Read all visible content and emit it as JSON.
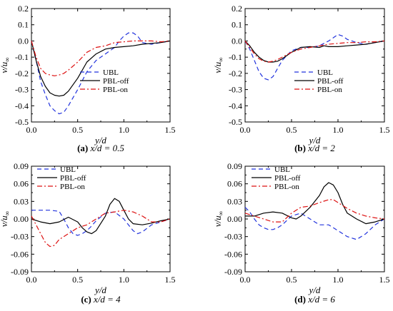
{
  "series_style": {
    "UBL": {
      "color": "#2233dd",
      "dash": "6,4"
    },
    "PBL-off": {
      "color": "#000000",
      "dash": ""
    },
    "PBL-on": {
      "color": "#dd1111",
      "dash": "7,3,2,3"
    }
  },
  "chart_data": [
    {
      "type": "line",
      "caption_letter": "(a)",
      "caption_value": "x/d = 0.5",
      "xlabel": "y/d",
      "ylabel_main": "v/u",
      "ylabel_sub": "∞",
      "xlim": [
        0,
        1.5
      ],
      "ylim": [
        -0.5,
        0.2
      ],
      "xticks": [
        "0.0",
        "0.5",
        "1.0",
        "1.5"
      ],
      "yticks": [
        "0.2",
        "0.1",
        "0.0",
        "-0.1",
        "-0.2",
        "-0.3",
        "-0.4",
        "-0.5"
      ],
      "legend": [
        "UBL",
        "PBL-off",
        "PBL-on"
      ],
      "series": [
        {
          "name": "UBL",
          "x": [
            0,
            0.05,
            0.1,
            0.15,
            0.2,
            0.25,
            0.3,
            0.35,
            0.4,
            0.5,
            0.6,
            0.7,
            0.8,
            0.9,
            0.95,
            1.0,
            1.05,
            1.1,
            1.15,
            1.2,
            1.3,
            1.4,
            1.5
          ],
          "y": [
            0,
            -0.12,
            -0.25,
            -0.33,
            -0.4,
            -0.43,
            -0.45,
            -0.44,
            -0.4,
            -0.3,
            -0.19,
            -0.12,
            -0.08,
            -0.04,
            0,
            0.03,
            0.05,
            0.05,
            0.03,
            -0.01,
            -0.02,
            -0.01,
            0
          ]
        },
        {
          "name": "PBL-off",
          "x": [
            0,
            0.05,
            0.1,
            0.15,
            0.2,
            0.25,
            0.3,
            0.35,
            0.4,
            0.5,
            0.6,
            0.7,
            0.8,
            0.9,
            1.0,
            1.1,
            1.2,
            1.3,
            1.4,
            1.5
          ],
          "y": [
            0,
            -0.12,
            -0.22,
            -0.28,
            -0.32,
            -0.335,
            -0.34,
            -0.335,
            -0.31,
            -0.23,
            -0.13,
            -0.08,
            -0.05,
            -0.04,
            -0.035,
            -0.03,
            -0.02,
            -0.015,
            -0.01,
            0
          ]
        },
        {
          "name": "PBL-on",
          "x": [
            0,
            0.05,
            0.1,
            0.15,
            0.2,
            0.25,
            0.3,
            0.35,
            0.4,
            0.5,
            0.6,
            0.7,
            0.8,
            0.9,
            1.0,
            1.1,
            1.2,
            1.3,
            1.4,
            1.5
          ],
          "y": [
            0,
            -0.1,
            -0.17,
            -0.2,
            -0.21,
            -0.215,
            -0.21,
            -0.2,
            -0.18,
            -0.13,
            -0.07,
            -0.04,
            -0.03,
            -0.01,
            -0.005,
            0,
            0,
            0,
            -0.005,
            0
          ]
        }
      ]
    },
    {
      "type": "line",
      "caption_letter": "(b)",
      "caption_value": "x/d = 2",
      "xlabel": "y/d",
      "ylabel_main": "v/u",
      "ylabel_sub": "∞",
      "xlim": [
        0,
        1.5
      ],
      "ylim": [
        -0.5,
        0.2
      ],
      "xticks": [
        "0.0",
        "0.5",
        "1.0",
        "1.5"
      ],
      "yticks": [
        "0.2",
        "0.1",
        "0.0",
        "-0.1",
        "-0.2",
        "-0.3",
        "-0.4",
        "-0.5"
      ],
      "legend": [
        "UBL",
        "PBL-off",
        "PBL-on"
      ],
      "series": [
        {
          "name": "UBL",
          "x": [
            0,
            0.05,
            0.1,
            0.15,
            0.2,
            0.25,
            0.3,
            0.35,
            0.4,
            0.5,
            0.6,
            0.7,
            0.8,
            0.9,
            0.95,
            1.0,
            1.05,
            1.1,
            1.2,
            1.3,
            1.4,
            1.5
          ],
          "y": [
            0,
            -0.05,
            -0.12,
            -0.19,
            -0.23,
            -0.24,
            -0.22,
            -0.17,
            -0.12,
            -0.06,
            -0.04,
            -0.04,
            -0.03,
            0,
            0.02,
            0.04,
            0.03,
            0.01,
            -0.01,
            -0.02,
            -0.01,
            0
          ]
        },
        {
          "name": "PBL-off",
          "x": [
            0,
            0.05,
            0.1,
            0.15,
            0.2,
            0.25,
            0.3,
            0.35,
            0.4,
            0.5,
            0.6,
            0.7,
            0.8,
            0.85,
            0.9,
            1.0,
            1.1,
            1.2,
            1.3,
            1.4,
            1.5
          ],
          "y": [
            0,
            -0.03,
            -0.07,
            -0.1,
            -0.12,
            -0.13,
            -0.13,
            -0.125,
            -0.11,
            -0.07,
            -0.04,
            -0.035,
            -0.04,
            -0.03,
            -0.035,
            -0.035,
            -0.03,
            -0.025,
            -0.02,
            -0.01,
            0
          ]
        },
        {
          "name": "PBL-on",
          "x": [
            0,
            0.05,
            0.1,
            0.15,
            0.2,
            0.25,
            0.3,
            0.35,
            0.4,
            0.5,
            0.6,
            0.7,
            0.8,
            0.9,
            1.0,
            1.1,
            1.2,
            1.3,
            1.4,
            1.5
          ],
          "y": [
            0,
            -0.04,
            -0.08,
            -0.11,
            -0.125,
            -0.13,
            -0.125,
            -0.115,
            -0.1,
            -0.07,
            -0.05,
            -0.04,
            -0.03,
            -0.02,
            -0.015,
            -0.01,
            -0.01,
            -0.005,
            -0.005,
            0
          ]
        }
      ]
    },
    {
      "type": "line",
      "caption_letter": "(c)",
      "caption_value": "x/d = 4",
      "xlabel": "y/d",
      "ylabel_main": "v/u",
      "ylabel_sub": "∞",
      "xlim": [
        0,
        1.5
      ],
      "ylim": [
        -0.09,
        0.09
      ],
      "xticks": [
        "0.0",
        "0.5",
        "1.0",
        "1.5"
      ],
      "yticks": [
        "0.09",
        "0.06",
        "0.03",
        "0.00",
        "-0.03",
        "-0.06",
        "-0.09"
      ],
      "legend": [
        "UBL",
        "PBL-off",
        "PBL-on"
      ],
      "series": [
        {
          "name": "UBL",
          "x": [
            0,
            0.1,
            0.2,
            0.3,
            0.35,
            0.4,
            0.45,
            0.5,
            0.55,
            0.6,
            0.65,
            0.7,
            0.8,
            0.9,
            1.0,
            1.05,
            1.1,
            1.15,
            1.2,
            1.3,
            1.4,
            1.5
          ],
          "y": [
            0.015,
            0.015,
            0.015,
            0.013,
            0.0,
            -0.015,
            -0.025,
            -0.028,
            -0.025,
            -0.02,
            -0.012,
            -0.003,
            0.01,
            0.012,
            0.0,
            -0.01,
            -0.02,
            -0.025,
            -0.022,
            -0.01,
            -0.005,
            0
          ]
        },
        {
          "name": "PBL-off",
          "x": [
            0,
            0.1,
            0.2,
            0.3,
            0.4,
            0.5,
            0.55,
            0.6,
            0.65,
            0.7,
            0.8,
            0.85,
            0.9,
            0.95,
            1.0,
            1.05,
            1.1,
            1.2,
            1.3,
            1.4,
            1.5
          ],
          "y": [
            0.0,
            -0.005,
            -0.008,
            -0.005,
            0.003,
            -0.005,
            -0.015,
            -0.022,
            -0.025,
            -0.02,
            0.005,
            0.025,
            0.035,
            0.03,
            0.015,
            0.0,
            -0.008,
            -0.01,
            -0.007,
            -0.003,
            0
          ]
        },
        {
          "name": "PBL-on",
          "x": [
            0,
            0.05,
            0.1,
            0.15,
            0.2,
            0.25,
            0.3,
            0.4,
            0.5,
            0.6,
            0.7,
            0.8,
            0.9,
            1.0,
            1.1,
            1.2,
            1.3,
            1.4,
            1.5
          ],
          "y": [
            0.005,
            -0.01,
            -0.025,
            -0.04,
            -0.047,
            -0.045,
            -0.035,
            -0.025,
            -0.015,
            -0.01,
            0.0,
            0.01,
            0.012,
            0.015,
            0.012,
            0.005,
            -0.005,
            -0.005,
            0
          ]
        }
      ]
    },
    {
      "type": "line",
      "caption_letter": "(d)",
      "caption_value": "x/d = 6",
      "xlabel": "y/d",
      "ylabel_main": "v/u",
      "ylabel_sub": "∞",
      "xlim": [
        0,
        1.5
      ],
      "ylim": [
        -0.09,
        0.09
      ],
      "xticks": [
        "0.0",
        "0.5",
        "1.0",
        "1.5"
      ],
      "yticks": [
        "0.09",
        "0.06",
        "0.03",
        "0.00",
        "-0.03",
        "-0.06",
        "-0.09"
      ],
      "legend": [
        "UBL",
        "PBL-off",
        "PBL-on"
      ],
      "series": [
        {
          "name": "UBL",
          "x": [
            0,
            0.05,
            0.1,
            0.15,
            0.2,
            0.25,
            0.3,
            0.35,
            0.4,
            0.5,
            0.6,
            0.7,
            0.8,
            0.9,
            1.0,
            1.1,
            1.2,
            1.3,
            1.4,
            1.5
          ],
          "y": [
            0.02,
            0.012,
            0.0,
            -0.01,
            -0.015,
            -0.018,
            -0.018,
            -0.015,
            -0.01,
            0.005,
            0.01,
            0.0,
            -0.01,
            -0.01,
            -0.02,
            -0.03,
            -0.035,
            -0.025,
            -0.01,
            0
          ]
        },
        {
          "name": "PBL-off",
          "x": [
            0,
            0.1,
            0.2,
            0.3,
            0.4,
            0.5,
            0.55,
            0.6,
            0.7,
            0.8,
            0.85,
            0.9,
            0.95,
            1.0,
            1.05,
            1.1,
            1.2,
            1.3,
            1.4,
            1.5
          ],
          "y": [
            0.005,
            0.005,
            0.01,
            0.012,
            0.01,
            0.002,
            0.0,
            0.005,
            0.02,
            0.04,
            0.055,
            0.062,
            0.058,
            0.045,
            0.025,
            0.01,
            0.0,
            -0.008,
            -0.005,
            0
          ]
        },
        {
          "name": "PBL-on",
          "x": [
            0,
            0.1,
            0.2,
            0.3,
            0.4,
            0.5,
            0.6,
            0.7,
            0.8,
            0.9,
            0.95,
            1.0,
            1.1,
            1.2,
            1.3,
            1.4,
            1.5
          ],
          "y": [
            0.01,
            0.005,
            0.0,
            -0.005,
            -0.005,
            0.01,
            0.02,
            0.022,
            0.028,
            0.033,
            0.033,
            0.028,
            0.018,
            0.01,
            0.005,
            0.002,
            0
          ]
        }
      ]
    }
  ]
}
